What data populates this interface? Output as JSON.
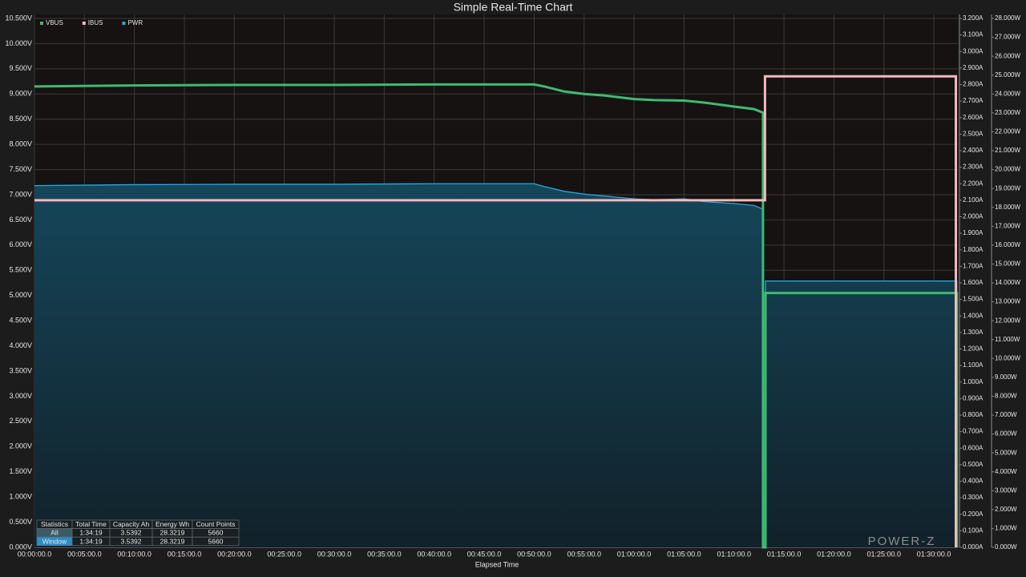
{
  "chart_data": {
    "type": "line",
    "title": "Simple Real-Time Chart",
    "x_label": "Elapsed Time",
    "watermark": "POWER-Z",
    "grid": true,
    "legend": "top-left",
    "xlim": [
      0,
      92.4
    ],
    "xticks": [
      {
        "value": 0,
        "label": "00:00:00.0"
      },
      {
        "value": 5,
        "label": "00:05:00.0"
      },
      {
        "value": 10,
        "label": "00:10:00.0"
      },
      {
        "value": 15,
        "label": "00:15:00.0"
      },
      {
        "value": 20,
        "label": "00:20:00.0"
      },
      {
        "value": 25,
        "label": "00:25:00.0"
      },
      {
        "value": 30,
        "label": "00:30:00.0"
      },
      {
        "value": 35,
        "label": "00:35:00.0"
      },
      {
        "value": 40,
        "label": "00:40:00.0"
      },
      {
        "value": 45,
        "label": "00:45:00.0"
      },
      {
        "value": 50,
        "label": "00:50:00.0"
      },
      {
        "value": 55,
        "label": "00:55:00.0"
      },
      {
        "value": 60,
        "label": "01:00:00.0"
      },
      {
        "value": 65,
        "label": "01:05:00.0"
      },
      {
        "value": 70,
        "label": "01:10:00.0"
      },
      {
        "value": 75,
        "label": "01:15:00.0"
      },
      {
        "value": 80,
        "label": "01:20:00.0"
      },
      {
        "value": 85,
        "label": "01:25:00.0"
      },
      {
        "value": 90,
        "label": "01:30:00.0"
      }
    ],
    "ylim": [
      0,
      10.5
    ],
    "yticks": [
      {
        "value": 0,
        "label": "0.000V"
      },
      {
        "value": 0.5,
        "label": "0.500V"
      },
      {
        "value": 1,
        "label": "1.000V"
      },
      {
        "value": 1.5,
        "label": "1.500V"
      },
      {
        "value": 2,
        "label": "2.000V"
      },
      {
        "value": 2.5,
        "label": "2.500V"
      },
      {
        "value": 3,
        "label": "3.000V"
      },
      {
        "value": 3.5,
        "label": "3.500V"
      },
      {
        "value": 4,
        "label": "4.000V"
      },
      {
        "value": 4.5,
        "label": "4.500V"
      },
      {
        "value": 5,
        "label": "5.000V"
      },
      {
        "value": 5.5,
        "label": "5.500V"
      },
      {
        "value": 6,
        "label": "6.000V"
      },
      {
        "value": 6.5,
        "label": "6.500V"
      },
      {
        "value": 7,
        "label": "7.000V"
      },
      {
        "value": 7.5,
        "label": "7.500V"
      },
      {
        "value": 8,
        "label": "8.000V"
      },
      {
        "value": 8.5,
        "label": "8.500V"
      },
      {
        "value": 9,
        "label": "9.000V"
      },
      {
        "value": 9.5,
        "label": "9.500V"
      },
      {
        "value": 10,
        "label": "10.000V"
      },
      {
        "value": 10.5,
        "label": "10.500V"
      }
    ],
    "y2lim": [
      0,
      3.2
    ],
    "y2ticks": [
      {
        "value": 0,
        "label": "0.000A"
      },
      {
        "value": 0.1,
        "label": "0.100A"
      },
      {
        "value": 0.2,
        "label": "0.200A"
      },
      {
        "value": 0.3,
        "label": "0.300A"
      },
      {
        "value": 0.4,
        "label": "0.400A"
      },
      {
        "value": 0.5,
        "label": "0.500A"
      },
      {
        "value": 0.6,
        "label": "0.600A"
      },
      {
        "value": 0.7,
        "label": "0.700A"
      },
      {
        "value": 0.8,
        "label": "0.800A"
      },
      {
        "value": 0.9,
        "label": "0.900A"
      },
      {
        "value": 1,
        "label": "1.000A"
      },
      {
        "value": 1.1,
        "label": "1.100A"
      },
      {
        "value": 1.2,
        "label": "1.200A"
      },
      {
        "value": 1.3,
        "label": "1.300A"
      },
      {
        "value": 1.4,
        "label": "1.400A"
      },
      {
        "value": 1.5,
        "label": "1.500A"
      },
      {
        "value": 1.6,
        "label": "1.600A"
      },
      {
        "value": 1.7,
        "label": "1.700A"
      },
      {
        "value": 1.8,
        "label": "1.800A"
      },
      {
        "value": 1.9,
        "label": "1.900A"
      },
      {
        "value": 2,
        "label": "2.000A"
      },
      {
        "value": 2.1,
        "label": "2.100A"
      },
      {
        "value": 2.2,
        "label": "2.200A"
      },
      {
        "value": 2.3,
        "label": "2.300A"
      },
      {
        "value": 2.4,
        "label": "2.400A"
      },
      {
        "value": 2.5,
        "label": "2.500A"
      },
      {
        "value": 2.6,
        "label": "2.600A"
      },
      {
        "value": 2.7,
        "label": "2.700A"
      },
      {
        "value": 2.8,
        "label": "2.800A"
      },
      {
        "value": 2.9,
        "label": "2.900A"
      },
      {
        "value": 3,
        "label": "3.000A"
      },
      {
        "value": 3.1,
        "label": "3.100A"
      },
      {
        "value": 3.2,
        "label": "3.200A"
      }
    ],
    "y3lim": [
      0,
      28
    ],
    "y3ticks": [
      {
        "value": 0,
        "label": "0.000W"
      },
      {
        "value": 1,
        "label": "1.000W"
      },
      {
        "value": 2,
        "label": "2.000W"
      },
      {
        "value": 3,
        "label": "3.000W"
      },
      {
        "value": 4,
        "label": "4.000W"
      },
      {
        "value": 5,
        "label": "5.000W"
      },
      {
        "value": 6,
        "label": "6.000W"
      },
      {
        "value": 7,
        "label": "7.000W"
      },
      {
        "value": 8,
        "label": "8.000W"
      },
      {
        "value": 9,
        "label": "9.000W"
      },
      {
        "value": 10,
        "label": "10.000W"
      },
      {
        "value": 11,
        "label": "11.000W"
      },
      {
        "value": 12,
        "label": "12.000W"
      },
      {
        "value": 13,
        "label": "13.000W"
      },
      {
        "value": 14,
        "label": "14.000W"
      },
      {
        "value": 15,
        "label": "15.000W"
      },
      {
        "value": 16,
        "label": "16.000W"
      },
      {
        "value": 17,
        "label": "17.000W"
      },
      {
        "value": 18,
        "label": "18.000W"
      },
      {
        "value": 19,
        "label": "19.000W"
      },
      {
        "value": 20,
        "label": "20.000W"
      },
      {
        "value": 21,
        "label": "21.000W"
      },
      {
        "value": 22,
        "label": "22.000W"
      },
      {
        "value": 23,
        "label": "23.000W"
      },
      {
        "value": 24,
        "label": "24.000W"
      },
      {
        "value": 25,
        "label": "25.000W"
      },
      {
        "value": 26,
        "label": "26.000W"
      },
      {
        "value": 27,
        "label": "27.000W"
      },
      {
        "value": 28,
        "label": "28.000W"
      }
    ],
    "series": [
      {
        "name": "VBUS",
        "color": "#3dbb72",
        "axis": "y",
        "width": 3,
        "x": [
          0,
          10,
          20,
          30,
          40,
          50,
          51,
          53,
          55,
          57,
          60,
          62,
          65,
          67,
          70,
          72,
          72.9,
          72.9,
          73.15,
          73.15,
          92.3,
          92.3
        ],
        "values": [
          9.15,
          9.17,
          9.18,
          9.18,
          9.19,
          9.19,
          9.15,
          9.05,
          9.0,
          8.97,
          8.9,
          8.88,
          8.87,
          8.83,
          8.75,
          8.7,
          8.63,
          0,
          0,
          5.05,
          5.05,
          0
        ]
      },
      {
        "name": "IBUS",
        "color": "#f4b8bc",
        "axis": "y2",
        "width": 3,
        "x": [
          0,
          73.1,
          73.1,
          92.2,
          92.2
        ],
        "values": [
          2.1,
          2.1,
          2.85,
          2.85,
          0
        ]
      },
      {
        "name": "PWR",
        "color": "#29a9e0",
        "axis": "y3",
        "width": 1.3,
        "area": true,
        "x": [
          0,
          10,
          20,
          30,
          40,
          50,
          51,
          53,
          55,
          57,
          60,
          62,
          65,
          67,
          70,
          72,
          72.9,
          72.9,
          73.15,
          73.15,
          92.3,
          92.3
        ],
        "values": [
          19.15,
          19.2,
          19.22,
          19.22,
          19.25,
          19.25,
          19.1,
          18.85,
          18.7,
          18.6,
          18.45,
          18.4,
          18.45,
          18.3,
          18.2,
          18.1,
          17.9,
          0,
          0,
          14.1,
          14.1,
          0
        ]
      }
    ],
    "stats": {
      "header": [
        "Statistics",
        "Total Time",
        "Capacity Ah",
        "Energy Wh",
        "Count Points"
      ],
      "rows": [
        [
          "All",
          "1:34:19",
          "3.5392",
          "28.3219",
          "5660"
        ],
        [
          "Window",
          "1:34:19",
          "3.5392",
          "28.3219",
          "5660"
        ]
      ]
    }
  }
}
